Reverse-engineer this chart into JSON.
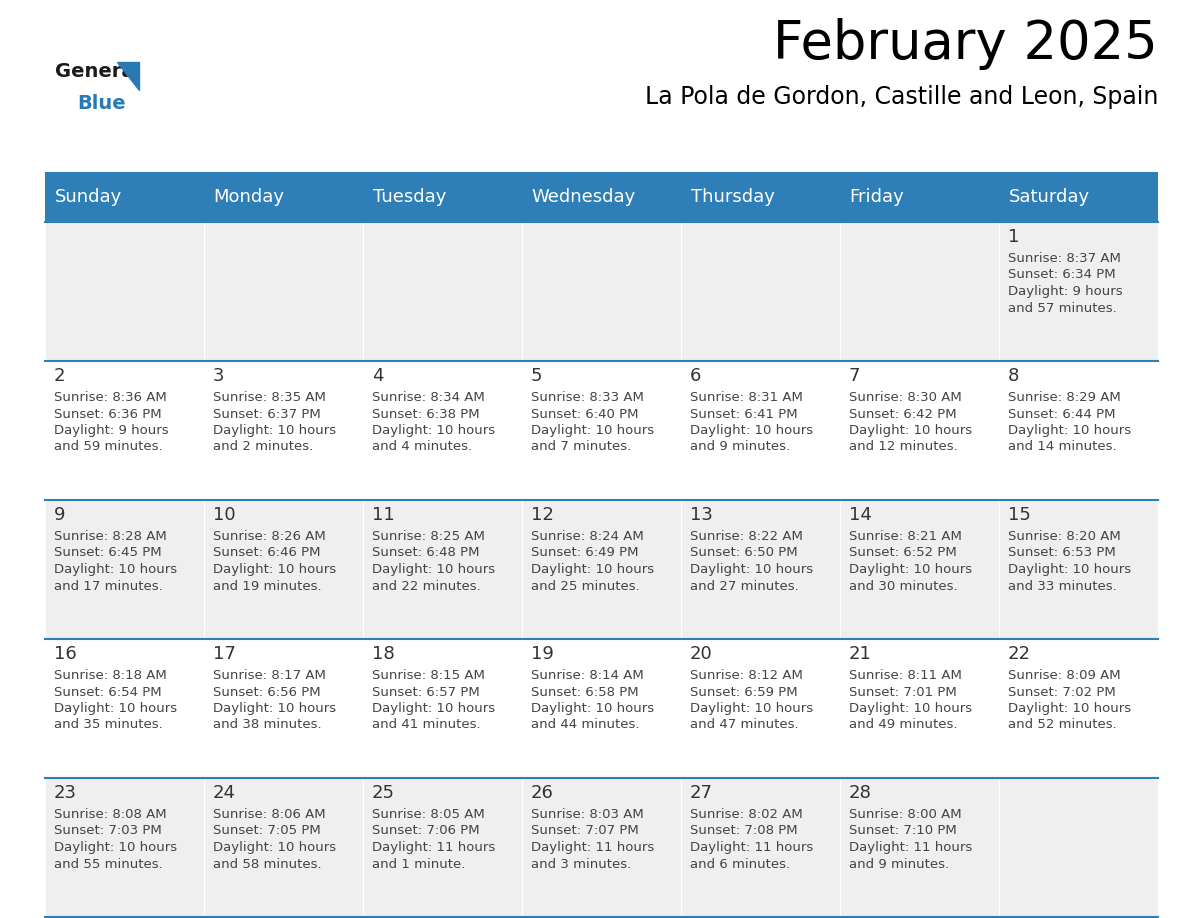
{
  "title": "February 2025",
  "subtitle": "La Pola de Gordon, Castille and Leon, Spain",
  "days_of_week": [
    "Sunday",
    "Monday",
    "Tuesday",
    "Wednesday",
    "Thursday",
    "Friday",
    "Saturday"
  ],
  "header_bg": "#2E7EB8",
  "header_text": "#FFFFFF",
  "cell_bg_even": "#EFEFEF",
  "cell_bg_odd": "#FFFFFF",
  "day_number_color": "#333333",
  "text_color": "#444444",
  "line_color": "#2E7EB8",
  "calendar_data": [
    [
      null,
      null,
      null,
      null,
      null,
      null,
      {
        "day": 1,
        "sunrise": "8:37 AM",
        "sunset": "6:34 PM",
        "daylight": "9 hours\nand 57 minutes."
      }
    ],
    [
      {
        "day": 2,
        "sunrise": "8:36 AM",
        "sunset": "6:36 PM",
        "daylight": "9 hours\nand 59 minutes."
      },
      {
        "day": 3,
        "sunrise": "8:35 AM",
        "sunset": "6:37 PM",
        "daylight": "10 hours\nand 2 minutes."
      },
      {
        "day": 4,
        "sunrise": "8:34 AM",
        "sunset": "6:38 PM",
        "daylight": "10 hours\nand 4 minutes."
      },
      {
        "day": 5,
        "sunrise": "8:33 AM",
        "sunset": "6:40 PM",
        "daylight": "10 hours\nand 7 minutes."
      },
      {
        "day": 6,
        "sunrise": "8:31 AM",
        "sunset": "6:41 PM",
        "daylight": "10 hours\nand 9 minutes."
      },
      {
        "day": 7,
        "sunrise": "8:30 AM",
        "sunset": "6:42 PM",
        "daylight": "10 hours\nand 12 minutes."
      },
      {
        "day": 8,
        "sunrise": "8:29 AM",
        "sunset": "6:44 PM",
        "daylight": "10 hours\nand 14 minutes."
      }
    ],
    [
      {
        "day": 9,
        "sunrise": "8:28 AM",
        "sunset": "6:45 PM",
        "daylight": "10 hours\nand 17 minutes."
      },
      {
        "day": 10,
        "sunrise": "8:26 AM",
        "sunset": "6:46 PM",
        "daylight": "10 hours\nand 19 minutes."
      },
      {
        "day": 11,
        "sunrise": "8:25 AM",
        "sunset": "6:48 PM",
        "daylight": "10 hours\nand 22 minutes."
      },
      {
        "day": 12,
        "sunrise": "8:24 AM",
        "sunset": "6:49 PM",
        "daylight": "10 hours\nand 25 minutes."
      },
      {
        "day": 13,
        "sunrise": "8:22 AM",
        "sunset": "6:50 PM",
        "daylight": "10 hours\nand 27 minutes."
      },
      {
        "day": 14,
        "sunrise": "8:21 AM",
        "sunset": "6:52 PM",
        "daylight": "10 hours\nand 30 minutes."
      },
      {
        "day": 15,
        "sunrise": "8:20 AM",
        "sunset": "6:53 PM",
        "daylight": "10 hours\nand 33 minutes."
      }
    ],
    [
      {
        "day": 16,
        "sunrise": "8:18 AM",
        "sunset": "6:54 PM",
        "daylight": "10 hours\nand 35 minutes."
      },
      {
        "day": 17,
        "sunrise": "8:17 AM",
        "sunset": "6:56 PM",
        "daylight": "10 hours\nand 38 minutes."
      },
      {
        "day": 18,
        "sunrise": "8:15 AM",
        "sunset": "6:57 PM",
        "daylight": "10 hours\nand 41 minutes."
      },
      {
        "day": 19,
        "sunrise": "8:14 AM",
        "sunset": "6:58 PM",
        "daylight": "10 hours\nand 44 minutes."
      },
      {
        "day": 20,
        "sunrise": "8:12 AM",
        "sunset": "6:59 PM",
        "daylight": "10 hours\nand 47 minutes."
      },
      {
        "day": 21,
        "sunrise": "8:11 AM",
        "sunset": "7:01 PM",
        "daylight": "10 hours\nand 49 minutes."
      },
      {
        "day": 22,
        "sunrise": "8:09 AM",
        "sunset": "7:02 PM",
        "daylight": "10 hours\nand 52 minutes."
      }
    ],
    [
      {
        "day": 23,
        "sunrise": "8:08 AM",
        "sunset": "7:03 PM",
        "daylight": "10 hours\nand 55 minutes."
      },
      {
        "day": 24,
        "sunrise": "8:06 AM",
        "sunset": "7:05 PM",
        "daylight": "10 hours\nand 58 minutes."
      },
      {
        "day": 25,
        "sunrise": "8:05 AM",
        "sunset": "7:06 PM",
        "daylight": "11 hours\nand 1 minute."
      },
      {
        "day": 26,
        "sunrise": "8:03 AM",
        "sunset": "7:07 PM",
        "daylight": "11 hours\nand 3 minutes."
      },
      {
        "day": 27,
        "sunrise": "8:02 AM",
        "sunset": "7:08 PM",
        "daylight": "11 hours\nand 6 minutes."
      },
      {
        "day": 28,
        "sunrise": "8:00 AM",
        "sunset": "7:10 PM",
        "daylight": "11 hours\nand 9 minutes."
      },
      null
    ]
  ],
  "logo_general_color": "#1a1a1a",
  "logo_blue_color": "#2979B5",
  "title_fontsize": 38,
  "subtitle_fontsize": 17,
  "header_fontsize": 13,
  "day_number_fontsize": 13,
  "cell_text_fontsize": 9.5
}
